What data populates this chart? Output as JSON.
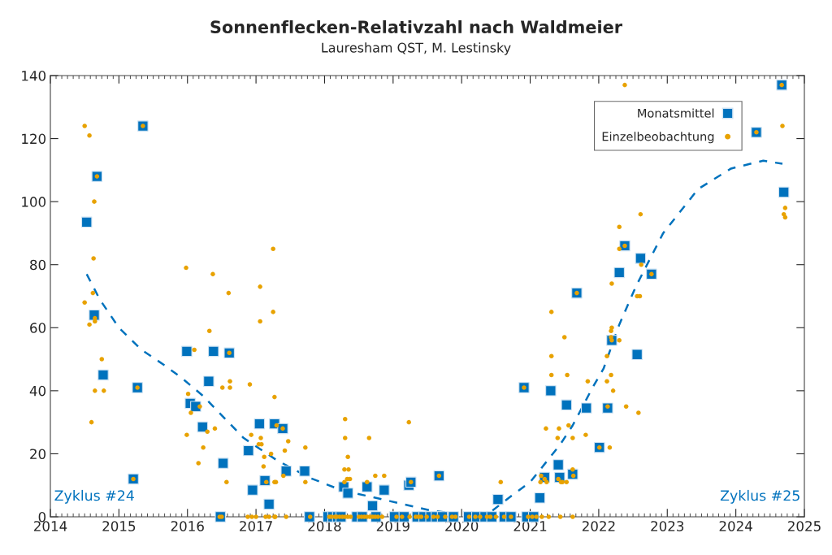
{
  "chart_data": {
    "type": "scatter",
    "title": "Sonnenflecken-Relativzahl nach Waldmeier",
    "subtitle": "Lauresham QST, M. Lestinsky",
    "xlim": [
      2014,
      2025
    ],
    "xticks": [
      2014,
      2015,
      2016,
      2017,
      2018,
      2019,
      2020,
      2021,
      2022,
      2023,
      2024,
      2025
    ],
    "ylim": [
      0,
      140
    ],
    "yticks": [
      0,
      20,
      40,
      60,
      80,
      100,
      120,
      140
    ],
    "legend": "top right",
    "annotations": [
      "Zyklus #24",
      "Zyklus #25"
    ],
    "series": [
      {
        "name": "Monatsmittel",
        "marker": "square",
        "color": "#0072bd",
        "x": [
          2014.53,
          2014.64,
          2014.68,
          2014.77,
          2015.21,
          2015.27,
          2015.35,
          2015.99,
          2016.04,
          2016.12,
          2016.22,
          2016.31,
          2016.38,
          2016.48,
          2016.52,
          2016.61,
          2016.89,
          2016.95,
          2017.05,
          2017.13,
          2017.19,
          2017.27,
          2017.39,
          2017.44,
          2017.71,
          2017.78,
          2018.05,
          2018.12,
          2018.19,
          2018.24,
          2018.28,
          2018.34,
          2018.47,
          2018.55,
          2018.62,
          2018.7,
          2018.75,
          2018.87,
          2019.02,
          2019.16,
          2019.23,
          2019.26,
          2019.35,
          2019.45,
          2019.55,
          2019.63,
          2019.67,
          2019.72,
          2019.88,
          2020.1,
          2020.22,
          2020.34,
          2020.44,
          2020.53,
          2020.62,
          2020.72,
          2020.91,
          2020.95,
          2021.05,
          2021.14,
          2021.21,
          2021.3,
          2021.41,
          2021.43,
          2021.53,
          2021.62,
          2021.68,
          2021.82,
          2022.01,
          2022.13,
          2022.19,
          2022.3,
          2022.38,
          2022.56,
          2022.61,
          2022.77,
          2024.3,
          2024.67,
          2024.7
        ],
        "values": [
          93.5,
          64,
          108,
          45,
          12,
          41,
          124,
          52.5,
          36,
          35,
          28.5,
          43,
          52.5,
          0,
          17,
          52,
          21,
          8.5,
          29.5,
          11.5,
          4,
          29.5,
          28,
          14.5,
          14.5,
          0,
          0,
          0,
          0,
          0,
          9.5,
          7.5,
          0,
          0,
          9.5,
          3.5,
          0,
          8.5,
          0,
          0,
          10,
          11,
          0,
          0,
          0,
          0,
          13,
          0,
          0,
          0,
          0,
          0,
          0,
          5.5,
          0,
          0,
          41,
          0,
          0,
          6,
          12.5,
          40,
          16.5,
          12.5,
          35.5,
          13.5,
          71,
          34.5,
          22,
          34.5,
          56,
          77.5,
          86,
          51.5,
          82,
          77,
          122,
          137,
          103
        ]
      },
      {
        "name": "Einzelbeobachtung",
        "marker": "circle",
        "color": "#e8a200",
        "x": [
          2014.5,
          2014.57,
          2014.64,
          2014.63,
          2014.62,
          2014.5,
          2014.65,
          2014.65,
          2014.57,
          2014.75,
          2014.65,
          2014.78,
          2014.6,
          2014.68,
          2015.21,
          2015.27,
          2015.35,
          2015.98,
          2016.37,
          2016.6,
          2016.32,
          2016.1,
          2016.01,
          2016.05,
          2016.18,
          2015.99,
          2016.23,
          2016.16,
          2016.29,
          2016.4,
          2016.51,
          2016.62,
          2016.62,
          2016.57,
          2016.61,
          2016.47,
          2016.5,
          2017.25,
          2017.06,
          2017.06,
          2017.25,
          2017.27,
          2016.91,
          2016.93,
          2017.07,
          2017.04,
          2017.08,
          2017.3,
          2017.47,
          2017.42,
          2017.12,
          2017.22,
          2017.11,
          2017.72,
          2017.72,
          2017.4,
          2017.15,
          2017.27,
          2017.29,
          2017.39,
          2016.88,
          2016.94,
          2017.0,
          2017.14,
          2017.19,
          2017.27,
          2017.28,
          2017.44,
          2017.79,
          2018.3,
          2018.3,
          2018.34,
          2018.29,
          2018.35,
          2018.33,
          2018.37,
          2018.29,
          2018.65,
          2018.62,
          2018.74,
          2018.87,
          2019.23,
          2019.26,
          2019.67,
          2018.07,
          2018.1,
          2018.15,
          2018.18,
          2018.22,
          2018.26,
          2018.3,
          2018.34,
          2018.38,
          2018.5,
          2018.54,
          2018.58,
          2018.62,
          2018.66,
          2018.7,
          2018.74,
          2018.78,
          2018.84,
          2019.05,
          2019.13,
          2019.24,
          2019.33,
          2019.37,
          2019.41,
          2019.49,
          2019.59,
          2019.65,
          2019.76,
          2019.86,
          2019.91,
          2020.11,
          2020.2,
          2020.27,
          2020.37,
          2020.42,
          2020.5,
          2020.62,
          2020.72,
          2020.97,
          2021.03,
          2021.09,
          2021.17,
          2021.27,
          2021.44,
          2021.62,
          2020.57,
          2020.91,
          2022.19,
          2022.56,
          2022.6,
          2021.31,
          2022.19,
          2022.18,
          2022.18,
          2022.3,
          2021.5,
          2021.31,
          2022.12,
          2021.31,
          2021.54,
          2022.18,
          2021.84,
          2022.12,
          2022.21,
          2022.4,
          2022.58,
          2021.23,
          2021.42,
          2021.56,
          2021.4,
          2021.62,
          2021.81,
          2022.16,
          2021.62,
          2021.16,
          2021.21,
          2021.41,
          2021.63,
          2021.15,
          2021.24,
          2021.45,
          2021.47,
          2021.53,
          2021.68,
          2022.13,
          2022.01,
          2022.19,
          2022.38,
          2022.77,
          2022.38,
          2022.61,
          2022.3,
          2022.3,
          2022.62,
          2024.3,
          2024.67,
          2024.68,
          2024.72,
          2024.7,
          2024.72
        ],
        "values": [
          124,
          121,
          100,
          82,
          71,
          68,
          63,
          62,
          61,
          50,
          40,
          40,
          30,
          108,
          12,
          41,
          124,
          79,
          77,
          71,
          59,
          53,
          39,
          33,
          35,
          26,
          22,
          17,
          27,
          28,
          41,
          41,
          43,
          11,
          52,
          0,
          0,
          85,
          73,
          62,
          65,
          38,
          42,
          26,
          25,
          23,
          23,
          29,
          24,
          21,
          19,
          20,
          16,
          22,
          11,
          13,
          11,
          11,
          11,
          28,
          0,
          0,
          0,
          0,
          0,
          0,
          0,
          0,
          0,
          31,
          25,
          19,
          15,
          15,
          12,
          12,
          11,
          25,
          11,
          13,
          13,
          30,
          11,
          13,
          0,
          0,
          0,
          0,
          0,
          0,
          0,
          0,
          0,
          0,
          0,
          0,
          0,
          0,
          0,
          0,
          0,
          0,
          0,
          0,
          0,
          0,
          0,
          0,
          0,
          0,
          0,
          0,
          0,
          0,
          0,
          0,
          0,
          0,
          0,
          0,
          0,
          0,
          0,
          0,
          0,
          0,
          0,
          0,
          0,
          11,
          41,
          74,
          70,
          70,
          65,
          60,
          59,
          57,
          56,
          57,
          51,
          51,
          45,
          45,
          45,
          43,
          43,
          40,
          35,
          33,
          28,
          28,
          29,
          25,
          25,
          26,
          22,
          15,
          13,
          12,
          12,
          13,
          11,
          11,
          11,
          11,
          11,
          71,
          35,
          22,
          56,
          86,
          77,
          137,
          96,
          92,
          85,
          80,
          122,
          137,
          124,
          98,
          96,
          95
        ]
      },
      {
        "type": "line",
        "line_style": "dashed",
        "marker": "none",
        "color": "#0072bd",
        "x": [
          2014.53,
          2014.72,
          2015.0,
          2015.33,
          2015.67,
          2015.92,
          2016.22,
          2016.82,
          2017.3,
          2017.77,
          2018.24,
          2018.95,
          2019.55,
          2019.9
        ],
        "values": [
          77,
          69,
          60,
          53,
          48,
          44,
          38.5,
          25,
          18,
          12.5,
          8.5,
          5,
          2,
          1
        ]
      },
      {
        "type": "line",
        "line_style": "dashed",
        "marker": "none",
        "color": "#0072bd",
        "x": [
          2020.45,
          2020.73,
          2021.0,
          2021.44,
          2021.62,
          2021.91,
          2022.07,
          2022.3,
          2022.54,
          2022.94,
          2023.45,
          2023.93,
          2024.4,
          2024.68
        ],
        "values": [
          2,
          6.7,
          11,
          23,
          29,
          41,
          47,
          61,
          73,
          90,
          104,
          110.5,
          113,
          112
        ]
      }
    ]
  }
}
